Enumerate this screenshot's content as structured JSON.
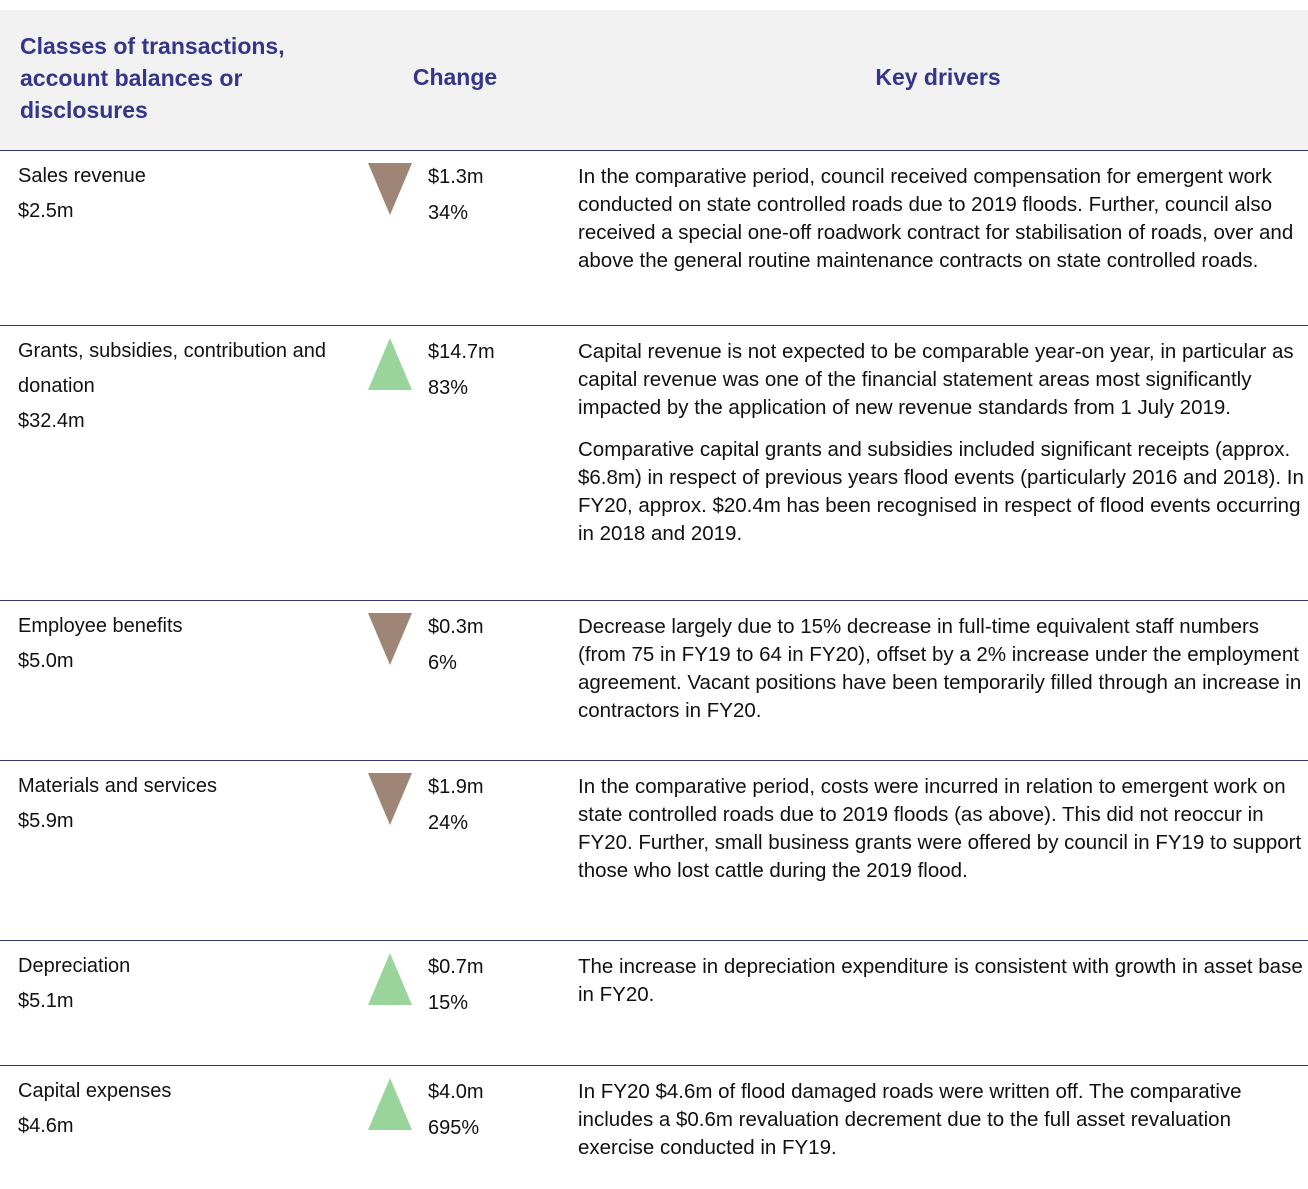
{
  "header": {
    "col1": "Classes of transactions, account balances or disclosures",
    "col2": "Change",
    "col3": "Key drivers"
  },
  "rows": [
    {
      "class": "Sales revenue",
      "amount": "$2.5m",
      "change_amount": "$1.3m",
      "change_percent": "34%",
      "key_drivers": [
        "In the comparative period, council received compensation for emergent work conducted on state controlled roads due to 2019 floods. Further, council also received a special one-off roadwork contract for stabilisation of roads, over and above the general routine maintenance contracts on state controlled roads."
      ]
    },
    {
      "class": "Grants, subsidies, contribution and donation",
      "amount": "$32.4m",
      "change_amount": "$14.7m",
      "change_percent": "83%",
      "key_drivers": [
        "Capital revenue is not expected to be comparable year-on year, in particular as capital revenue was one of the financial statement areas most significantly impacted by the application of new revenue standards from 1 July 2019.",
        "Comparative capital grants and subsidies included significant receipts (approx. $6.8m) in respect of previous years flood events (particularly 2016 and 2018). In FY20, approx. $20.4m has been recognised in respect of flood events occurring in 2018 and 2019."
      ]
    },
    {
      "class": "Employee benefits",
      "amount": "$5.0m",
      "change_amount": "$0.3m",
      "change_percent": "6%",
      "key_drivers": [
        "Decrease largely due to 15% decrease in full-time equivalent staff numbers (from 75 in FY19 to 64 in FY20), offset by a 2% increase under the employment agreement. Vacant positions have been temporarily filled through an increase in contractors in FY20."
      ]
    },
    {
      "class": "Materials and services",
      "amount": "$5.9m",
      "change_amount": "$1.9m",
      "change_percent": "24%",
      "key_drivers": [
        "In the comparative period, costs were incurred in relation to emergent work on state controlled roads due to 2019 floods (as above). This did not reoccur in FY20. Further, small business grants were offered by council in FY19 to support those who lost cattle during the 2019 flood."
      ]
    },
    {
      "class": "Depreciation",
      "amount": "$5.1m",
      "change_amount": "$0.7m",
      "change_percent": "15%",
      "key_drivers": [
        "The increase in depreciation expenditure is consistent with growth in asset base in FY20."
      ]
    },
    {
      "class": "Capital expenses",
      "amount": "$4.6m",
      "change_amount": "$4.0m",
      "change_percent": "695%",
      "key_drivers": [
        "In FY20 $4.6m of flood damaged roads were written off. The comparative includes a $0.6m revaluation decrement due to the full asset revaluation exercise conducted in FY19."
      ]
    }
  ]
}
